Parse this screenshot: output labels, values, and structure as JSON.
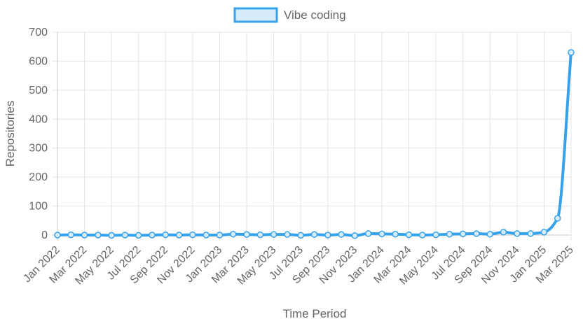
{
  "chart_data": {
    "type": "line",
    "title": "",
    "xlabel": "Time Period",
    "ylabel": "Repositories",
    "ylim": [
      0,
      700
    ],
    "yticks": [
      0,
      100,
      200,
      300,
      400,
      500,
      600,
      700
    ],
    "grid": true,
    "legend_position": "top",
    "categories": [
      "Jan 2022",
      "Feb 2022",
      "Mar 2022",
      "Apr 2022",
      "May 2022",
      "Jun 2022",
      "Jul 2022",
      "Aug 2022",
      "Sep 2022",
      "Oct 2022",
      "Nov 2022",
      "Dec 2022",
      "Jan 2023",
      "Feb 2023",
      "Mar 2023",
      "Apr 2023",
      "May 2023",
      "Jun 2023",
      "Jul 2023",
      "Aug 2023",
      "Sep 2023",
      "Oct 2023",
      "Nov 2023",
      "Dec 2023",
      "Jan 2024",
      "Feb 2024",
      "Mar 2024",
      "Apr 2024",
      "May 2024",
      "Jun 2024",
      "Jul 2024",
      "Aug 2024",
      "Sep 2024",
      "Oct 2024",
      "Nov 2024",
      "Dec 2024",
      "Jan 2025",
      "Feb 2025",
      "Mar 2025"
    ],
    "x_tick_labels": [
      "Jan 2022",
      "Mar 2022",
      "May 2022",
      "Jul 2022",
      "Sep 2022",
      "Nov 2022",
      "Jan 2023",
      "Mar 2023",
      "May 2023",
      "Jul 2023",
      "Sep 2023",
      "Nov 2023",
      "Jan 2024",
      "Mar 2024",
      "May 2024",
      "Jul 2024",
      "Sep 2024",
      "Nov 2024",
      "Jan 2025",
      "Mar 2025"
    ],
    "series": [
      {
        "name": "Vibe coding",
        "color": "#36A2EB",
        "fill": "#D7ECFB",
        "values": [
          0,
          1,
          0,
          0,
          -1,
          0,
          -1,
          0,
          1,
          0,
          1,
          0,
          0,
          3,
          2,
          1,
          2,
          2,
          -1,
          2,
          0,
          2,
          -2,
          5,
          4,
          3,
          1,
          0,
          1,
          3,
          4,
          5,
          3,
          10,
          5,
          5,
          10,
          58,
          630
        ]
      }
    ]
  }
}
